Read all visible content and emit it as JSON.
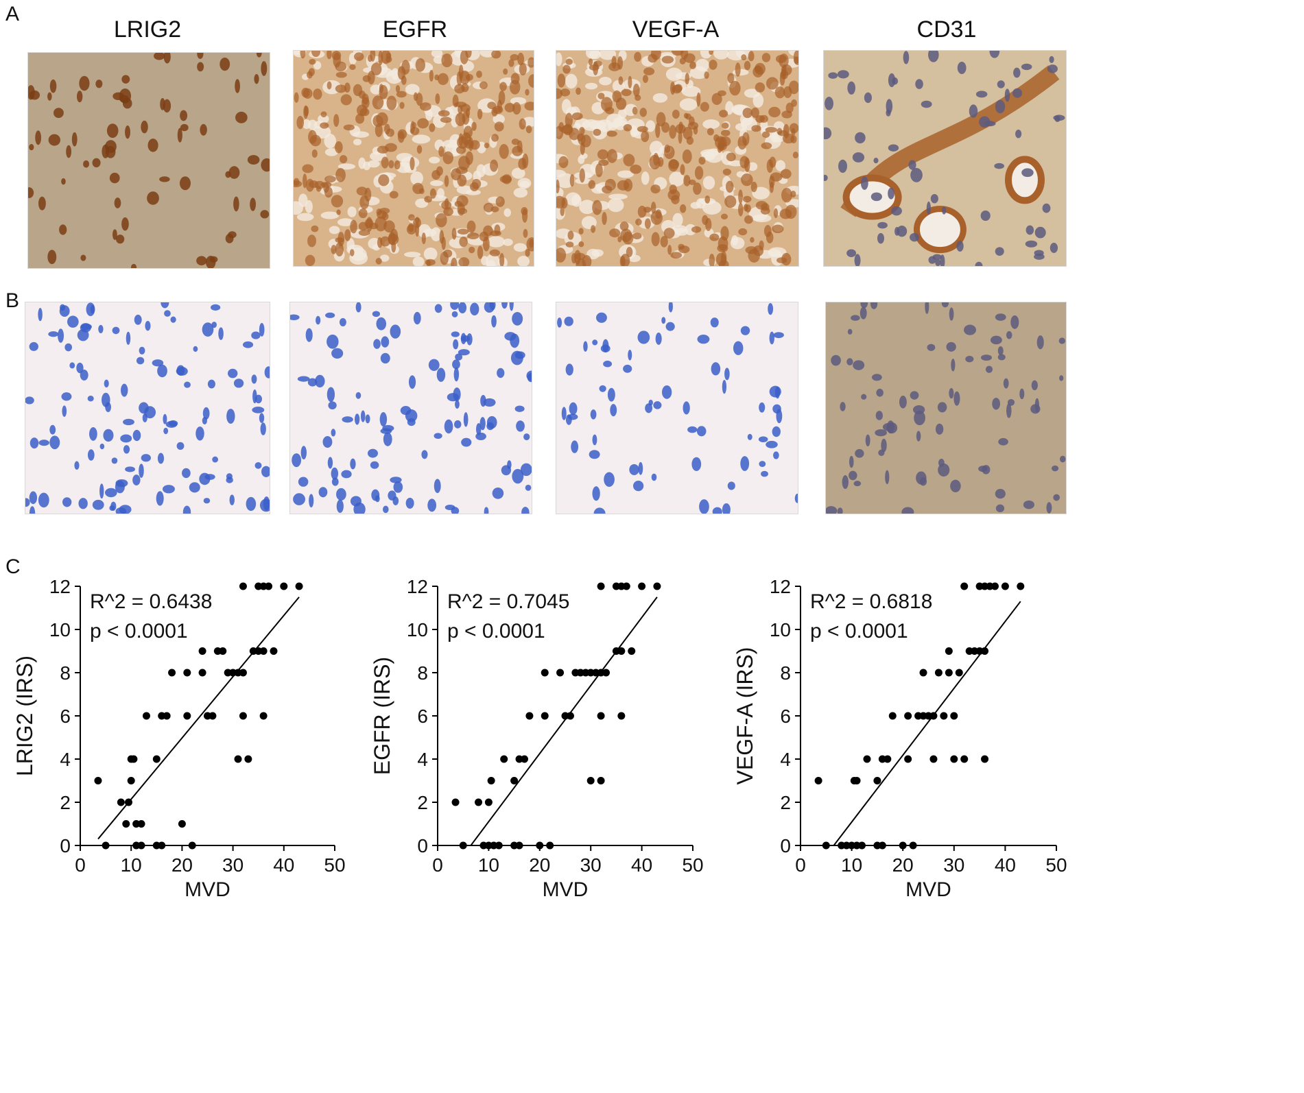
{
  "panel_labels": {
    "a": "A",
    "b": "B",
    "c": "C"
  },
  "column_titles": [
    "LRIG2",
    "EGFR",
    "VEGF-A",
    "CD31"
  ],
  "colors": {
    "stain_brown": "#a8612a",
    "stain_dark_brown": "#7a3d14",
    "hematoxylin_blue": "#3b5fc9",
    "nucleus_purple": "#5d5a7e",
    "background_tan": "#b8a58a",
    "background_pale": "#f4eef0",
    "point": "#000000",
    "line": "#000000"
  },
  "chart_data": [
    {
      "type": "scatter",
      "xlabel": "MVD",
      "ylabel": "LRIG2 (IRS)",
      "xlim": [
        0,
        50
      ],
      "ylim": [
        0,
        12
      ],
      "xticks": [
        0,
        10,
        20,
        30,
        40,
        50
      ],
      "yticks": [
        0,
        2,
        4,
        6,
        8,
        10,
        12
      ],
      "annotations": [
        "R^2 = 0.6438",
        "p < 0.0001"
      ],
      "points": [
        [
          3.5,
          3
        ],
        [
          5,
          0
        ],
        [
          8,
          2
        ],
        [
          9,
          1
        ],
        [
          9.5,
          2
        ],
        [
          10,
          3
        ],
        [
          10,
          4
        ],
        [
          10.5,
          4
        ],
        [
          11,
          0
        ],
        [
          11,
          1
        ],
        [
          12,
          0
        ],
        [
          12,
          1
        ],
        [
          13,
          6
        ],
        [
          15,
          0
        ],
        [
          15,
          4
        ],
        [
          16,
          0
        ],
        [
          16,
          6
        ],
        [
          17,
          6
        ],
        [
          18,
          8
        ],
        [
          20,
          1
        ],
        [
          21,
          8
        ],
        [
          21,
          6
        ],
        [
          22,
          0
        ],
        [
          24,
          8
        ],
        [
          24,
          9
        ],
        [
          25,
          6
        ],
        [
          26,
          6
        ],
        [
          27,
          9
        ],
        [
          28,
          9
        ],
        [
          29,
          8
        ],
        [
          30,
          8
        ],
        [
          31,
          8
        ],
        [
          32,
          8
        ],
        [
          31,
          4
        ],
        [
          32,
          6
        ],
        [
          33,
          4
        ],
        [
          32,
          12
        ],
        [
          34,
          9
        ],
        [
          35,
          12
        ],
        [
          35,
          9
        ],
        [
          36,
          12
        ],
        [
          36,
          9
        ],
        [
          37,
          12
        ],
        [
          36,
          6
        ],
        [
          38,
          9
        ],
        [
          40,
          12
        ],
        [
          43,
          12
        ]
      ],
      "fit": [
        [
          3.5,
          0.3
        ],
        [
          43,
          11.5
        ]
      ]
    },
    {
      "type": "scatter",
      "xlabel": "MVD",
      "ylabel": "EGFR (IRS)",
      "xlim": [
        0,
        50
      ],
      "ylim": [
        0,
        12
      ],
      "xticks": [
        0,
        10,
        20,
        30,
        40,
        50
      ],
      "yticks": [
        0,
        2,
        4,
        6,
        8,
        10,
        12
      ],
      "annotations": [
        "R^2 = 0.7045",
        "p < 0.0001"
      ],
      "points": [
        [
          3.5,
          2
        ],
        [
          5,
          0
        ],
        [
          8,
          2
        ],
        [
          9,
          0
        ],
        [
          10,
          2
        ],
        [
          10,
          0
        ],
        [
          10.5,
          3
        ],
        [
          11,
          0
        ],
        [
          12,
          0
        ],
        [
          13,
          4
        ],
        [
          15,
          0
        ],
        [
          15,
          3
        ],
        [
          16,
          4
        ],
        [
          16,
          0
        ],
        [
          17,
          4
        ],
        [
          18,
          6
        ],
        [
          20,
          0
        ],
        [
          21,
          8
        ],
        [
          21,
          6
        ],
        [
          22,
          0
        ],
        [
          24,
          8
        ],
        [
          25,
          6
        ],
        [
          26,
          6
        ],
        [
          27,
          8
        ],
        [
          28,
          8
        ],
        [
          29,
          8
        ],
        [
          30,
          8
        ],
        [
          31,
          8
        ],
        [
          32,
          8
        ],
        [
          30,
          3
        ],
        [
          32,
          3
        ],
        [
          32,
          6
        ],
        [
          32,
          12
        ],
        [
          33,
          8
        ],
        [
          35,
          12
        ],
        [
          35,
          9
        ],
        [
          36,
          12
        ],
        [
          36,
          9
        ],
        [
          36,
          6
        ],
        [
          37,
          12
        ],
        [
          38,
          9
        ],
        [
          40,
          12
        ],
        [
          43,
          12
        ]
      ],
      "fit": [
        [
          6.5,
          0
        ],
        [
          43,
          11.5
        ]
      ]
    },
    {
      "type": "scatter",
      "xlabel": "MVD",
      "ylabel": "VEGF-A (IRS)",
      "xlim": [
        0,
        50
      ],
      "ylim": [
        0,
        12
      ],
      "xticks": [
        0,
        10,
        20,
        30,
        40,
        50
      ],
      "yticks": [
        0,
        2,
        4,
        6,
        8,
        10,
        12
      ],
      "annotations": [
        "R^2 = 0.6818",
        "p < 0.0001"
      ],
      "points": [
        [
          3.5,
          3
        ],
        [
          5,
          0
        ],
        [
          8,
          0
        ],
        [
          9,
          0
        ],
        [
          10,
          0
        ],
        [
          10.5,
          3
        ],
        [
          11,
          3
        ],
        [
          11,
          0
        ],
        [
          12,
          0
        ],
        [
          13,
          4
        ],
        [
          15,
          0
        ],
        [
          15,
          3
        ],
        [
          16,
          0
        ],
        [
          16,
          4
        ],
        [
          17,
          4
        ],
        [
          18,
          6
        ],
        [
          20,
          0
        ],
        [
          21,
          6
        ],
        [
          21,
          4
        ],
        [
          22,
          0
        ],
        [
          23,
          6
        ],
        [
          24,
          8
        ],
        [
          24,
          6
        ],
        [
          25,
          6
        ],
        [
          26,
          6
        ],
        [
          26,
          4
        ],
        [
          27,
          8
        ],
        [
          28,
          6
        ],
        [
          29,
          8
        ],
        [
          29,
          9
        ],
        [
          30,
          6
        ],
        [
          30,
          4
        ],
        [
          31,
          8
        ],
        [
          32,
          4
        ],
        [
          32,
          12
        ],
        [
          33,
          9
        ],
        [
          34,
          9
        ],
        [
          35,
          9
        ],
        [
          35,
          12
        ],
        [
          36,
          12
        ],
        [
          36,
          9
        ],
        [
          36,
          4
        ],
        [
          37,
          12
        ],
        [
          38,
          12
        ],
        [
          40,
          12
        ],
        [
          43,
          12
        ]
      ],
      "fit": [
        [
          6.5,
          0
        ],
        [
          43,
          11.3
        ]
      ]
    }
  ]
}
